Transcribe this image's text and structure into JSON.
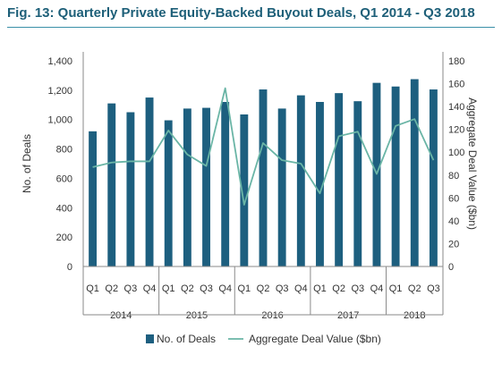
{
  "title": "Fig. 13: Quarterly Private Equity-Backed Buyout Deals, Q1 2014 - Q3 2018",
  "colors": {
    "title": "#1d5f78",
    "bars": "#1d5f7f",
    "line": "#6ab5a6",
    "rule": "#3a8fa8",
    "grid": "#cccccc"
  },
  "chart_data": {
    "type": "bar",
    "categories": [
      "Q1",
      "Q2",
      "Q3",
      "Q4",
      "Q1",
      "Q2",
      "Q3",
      "Q4",
      "Q1",
      "Q2",
      "Q3",
      "Q4",
      "Q1",
      "Q2",
      "Q3",
      "Q4",
      "Q1",
      "Q2",
      "Q3"
    ],
    "groups": [
      {
        "label": "2014",
        "count": 4
      },
      {
        "label": "2015",
        "count": 4
      },
      {
        "label": "2016",
        "count": 4
      },
      {
        "label": "2017",
        "count": 4
      },
      {
        "label": "2018",
        "count": 3
      }
    ],
    "series": [
      {
        "name": "No. of Deals",
        "type": "bar",
        "axis": "left",
        "values": [
          920,
          1110,
          1050,
          1150,
          995,
          1075,
          1080,
          1120,
          1035,
          1205,
          1075,
          1165,
          1120,
          1180,
          1125,
          1250,
          1225,
          1275,
          1205
        ]
      },
      {
        "name": "Aggregate Deal Value ($bn)",
        "type": "line",
        "axis": "right",
        "values": [
          87,
          91,
          92,
          92,
          119,
          98,
          88,
          156,
          54,
          108,
          93,
          90,
          64,
          114,
          118,
          81,
          123,
          129,
          93
        ]
      }
    ],
    "ylabel": "No. of Deals",
    "y2label": "Aggregate Deal Value ($bn)",
    "ylim": [
      0,
      1400
    ],
    "y2lim": [
      0,
      180
    ],
    "yticks": [
      "0",
      "200",
      "400",
      "600",
      "800",
      "1,000",
      "1,200",
      "1,400"
    ],
    "y2ticks": [
      "0",
      "20",
      "40",
      "60",
      "80",
      "100",
      "120",
      "140",
      "160",
      "180"
    ],
    "legend": "bottom",
    "grid": false
  }
}
